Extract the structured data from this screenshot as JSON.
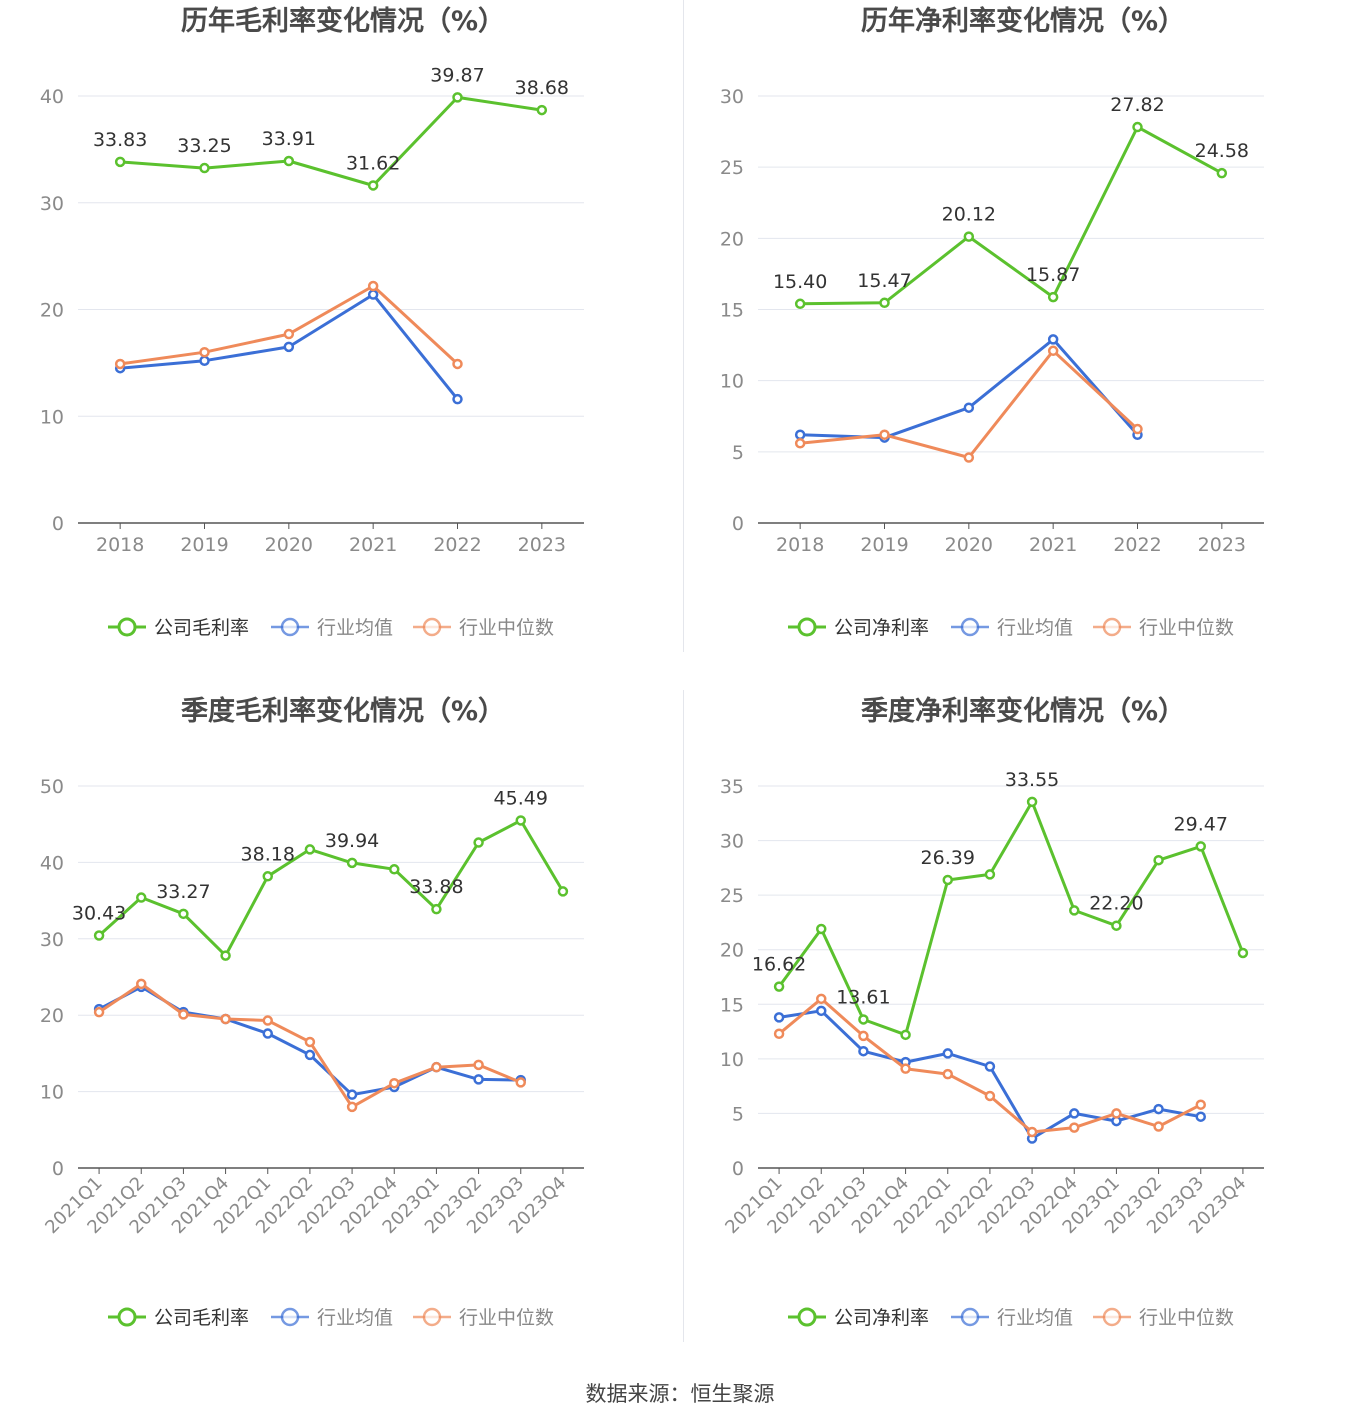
{
  "footer": {
    "label": "数据来源：",
    "source": "恒生聚源"
  },
  "chart_data": [
    {
      "type": "line",
      "title": "历年毛利率变化情况（%）",
      "categories": [
        "2018",
        "2019",
        "2020",
        "2021",
        "2022",
        "2023"
      ],
      "ylim": [
        0,
        40
      ],
      "yticks": [
        0,
        10,
        20,
        30,
        40
      ],
      "series": [
        {
          "name": "公司毛利率",
          "color": "#5bc12e",
          "labeled": [
            0,
            1,
            2,
            3,
            4,
            5
          ],
          "values": [
            33.83,
            33.25,
            33.91,
            31.62,
            39.87,
            38.68
          ]
        },
        {
          "name": "行业均值",
          "color": "#3b6fd6",
          "values": [
            14.5,
            15.2,
            16.5,
            21.4,
            11.6,
            null
          ]
        },
        {
          "name": "行业中位数",
          "color": "#ef8a5a",
          "values": [
            14.9,
            16.0,
            17.7,
            22.2,
            14.9,
            null
          ]
        }
      ]
    },
    {
      "type": "line",
      "title": "历年净利率变化情况（%）",
      "categories": [
        "2018",
        "2019",
        "2020",
        "2021",
        "2022",
        "2023"
      ],
      "ylim": [
        0,
        30
      ],
      "yticks": [
        0,
        5,
        10,
        15,
        20,
        25,
        30
      ],
      "series": [
        {
          "name": "公司净利率",
          "color": "#5bc12e",
          "labeled": [
            0,
            1,
            2,
            3,
            4,
            5
          ],
          "values": [
            15.4,
            15.47,
            20.12,
            15.87,
            27.82,
            24.58
          ]
        },
        {
          "name": "行业均值",
          "color": "#3b6fd6",
          "values": [
            6.2,
            6.0,
            8.1,
            12.9,
            6.2,
            null
          ]
        },
        {
          "name": "行业中位数",
          "color": "#ef8a5a",
          "values": [
            5.6,
            6.2,
            4.6,
            12.1,
            6.6,
            null
          ]
        }
      ]
    },
    {
      "type": "line",
      "title": "季度毛利率变化情况（%）",
      "categories": [
        "2021Q1",
        "2021Q2",
        "2021Q3",
        "2021Q4",
        "2022Q1",
        "2022Q2",
        "2022Q3",
        "2022Q4",
        "2023Q1",
        "2023Q2",
        "2023Q3",
        "2023Q4"
      ],
      "ylim": [
        0,
        50
      ],
      "yticks": [
        0,
        10,
        20,
        30,
        40,
        50
      ],
      "series": [
        {
          "name": "公司毛利率",
          "color": "#5bc12e",
          "labeled": [
            0,
            2,
            4,
            6,
            8,
            10
          ],
          "values": [
            30.43,
            35.4,
            33.27,
            27.8,
            38.18,
            41.7,
            39.94,
            39.1,
            33.88,
            42.6,
            45.49,
            36.2
          ]
        },
        {
          "name": "行业均值",
          "color": "#3b6fd6",
          "values": [
            20.8,
            23.7,
            20.4,
            19.5,
            17.6,
            14.8,
            9.6,
            10.6,
            13.2,
            11.6,
            11.5,
            null
          ]
        },
        {
          "name": "行业中位数",
          "color": "#ef8a5a",
          "values": [
            20.4,
            24.1,
            20.1,
            19.5,
            19.3,
            16.5,
            8.0,
            11.1,
            13.2,
            13.5,
            11.2,
            null
          ]
        }
      ]
    },
    {
      "type": "line",
      "title": "季度净利率变化情况（%）",
      "categories": [
        "2021Q1",
        "2021Q2",
        "2021Q3",
        "2021Q4",
        "2022Q1",
        "2022Q2",
        "2022Q3",
        "2022Q4",
        "2023Q1",
        "2023Q2",
        "2023Q3",
        "2023Q4"
      ],
      "ylim": [
        0,
        35
      ],
      "yticks": [
        0,
        5,
        10,
        15,
        20,
        25,
        30,
        35
      ],
      "series": [
        {
          "name": "公司净利率",
          "color": "#5bc12e",
          "labeled": [
            0,
            2,
            4,
            6,
            8,
            10
          ],
          "values": [
            16.62,
            21.9,
            13.61,
            12.2,
            26.39,
            26.9,
            33.55,
            23.6,
            22.2,
            28.2,
            29.47,
            19.7
          ]
        },
        {
          "name": "行业均值",
          "color": "#3b6fd6",
          "values": [
            13.8,
            14.4,
            10.7,
            9.7,
            10.5,
            9.3,
            2.7,
            5.0,
            4.3,
            5.4,
            4.7,
            null
          ]
        },
        {
          "name": "行业中位数",
          "color": "#ef8a5a",
          "values": [
            12.3,
            15.5,
            12.1,
            9.1,
            8.6,
            6.6,
            3.3,
            3.7,
            5.0,
            3.8,
            5.8,
            null
          ]
        }
      ]
    }
  ]
}
